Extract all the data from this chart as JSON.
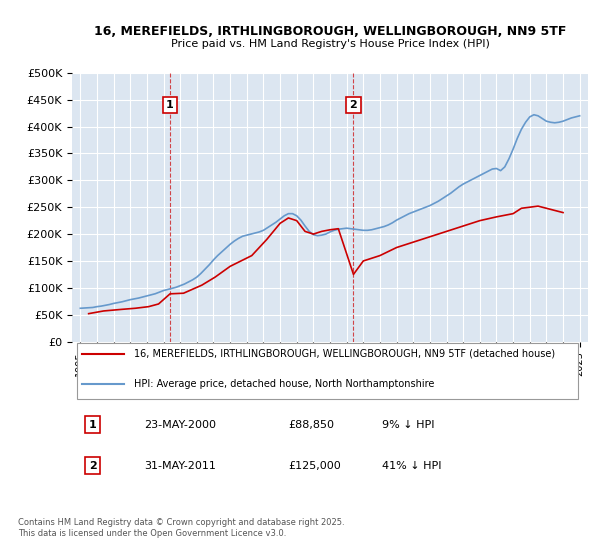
{
  "title_line1": "16, MEREFIELDS, IRTHLINGBOROUGH, WELLINGBOROUGH, NN9 5TF",
  "title_line2": "Price paid vs. HM Land Registry's House Price Index (HPI)",
  "bg_color": "#dce6f1",
  "plot_bg_color": "#dce6f1",
  "red_line_color": "#cc0000",
  "blue_line_color": "#6699cc",
  "annotation1": {
    "label": "1",
    "date": "23-MAY-2000",
    "price": "£88,850",
    "pct": "9% ↓ HPI",
    "x_year": 2000.39
  },
  "annotation2": {
    "label": "2",
    "date": "31-MAY-2011",
    "price": "£125,000",
    "pct": "41% ↓ HPI",
    "x_year": 2011.41
  },
  "legend_entry1": "16, MEREFIELDS, IRTHLINGBOROUGH, WELLINGBOROUGH, NN9 5TF (detached house)",
  "legend_entry2": "HPI: Average price, detached house, North Northamptonshire",
  "footer_line1": "Contains HM Land Registry data © Crown copyright and database right 2025.",
  "footer_line2": "This data is licensed under the Open Government Licence v3.0.",
  "ylim": [
    0,
    500000
  ],
  "yticks": [
    0,
    50000,
    100000,
    150000,
    200000,
    250000,
    300000,
    350000,
    400000,
    450000,
    500000
  ],
  "xlim_start": 1994.5,
  "xlim_end": 2025.5,
  "hpi_years": [
    1995.0,
    1995.25,
    1995.5,
    1995.75,
    1996.0,
    1996.25,
    1996.5,
    1996.75,
    1997.0,
    1997.25,
    1997.5,
    1997.75,
    1998.0,
    1998.25,
    1998.5,
    1998.75,
    1999.0,
    1999.25,
    1999.5,
    1999.75,
    2000.0,
    2000.25,
    2000.5,
    2000.75,
    2001.0,
    2001.25,
    2001.5,
    2001.75,
    2002.0,
    2002.25,
    2002.5,
    2002.75,
    2003.0,
    2003.25,
    2003.5,
    2003.75,
    2004.0,
    2004.25,
    2004.5,
    2004.75,
    2005.0,
    2005.25,
    2005.5,
    2005.75,
    2006.0,
    2006.25,
    2006.5,
    2006.75,
    2007.0,
    2007.25,
    2007.5,
    2007.75,
    2008.0,
    2008.25,
    2008.5,
    2008.75,
    2009.0,
    2009.25,
    2009.5,
    2009.75,
    2010.0,
    2010.25,
    2010.5,
    2010.75,
    2011.0,
    2011.25,
    2011.5,
    2011.75,
    2012.0,
    2012.25,
    2012.5,
    2012.75,
    2013.0,
    2013.25,
    2013.5,
    2013.75,
    2014.0,
    2014.25,
    2014.5,
    2014.75,
    2015.0,
    2015.25,
    2015.5,
    2015.75,
    2016.0,
    2016.25,
    2016.5,
    2016.75,
    2017.0,
    2017.25,
    2017.5,
    2017.75,
    2018.0,
    2018.25,
    2018.5,
    2018.75,
    2019.0,
    2019.25,
    2019.5,
    2019.75,
    2020.0,
    2020.25,
    2020.5,
    2020.75,
    2021.0,
    2021.25,
    2021.5,
    2021.75,
    2022.0,
    2022.25,
    2022.5,
    2022.75,
    2023.0,
    2023.25,
    2023.5,
    2023.75,
    2024.0,
    2024.25,
    2024.5,
    2024.75,
    2025.0
  ],
  "hpi_values": [
    62000,
    62500,
    63000,
    63500,
    65000,
    66000,
    67500,
    69000,
    71000,
    72500,
    74000,
    76000,
    78000,
    79500,
    81000,
    83000,
    85000,
    87000,
    89000,
    92000,
    95000,
    97000,
    99000,
    101000,
    104000,
    107000,
    111000,
    115000,
    120000,
    127000,
    135000,
    143000,
    152000,
    160000,
    167000,
    174000,
    181000,
    187000,
    192000,
    196000,
    198000,
    200000,
    202000,
    204000,
    207000,
    212000,
    217000,
    222000,
    228000,
    234000,
    238000,
    238000,
    234000,
    226000,
    215000,
    205000,
    199000,
    197000,
    198000,
    200000,
    204000,
    207000,
    209000,
    210000,
    211000,
    210000,
    209000,
    208000,
    207000,
    207000,
    208000,
    210000,
    212000,
    214000,
    217000,
    221000,
    226000,
    230000,
    234000,
    238000,
    241000,
    244000,
    247000,
    250000,
    253000,
    257000,
    261000,
    266000,
    271000,
    276000,
    282000,
    288000,
    293000,
    297000,
    301000,
    305000,
    309000,
    313000,
    317000,
    321000,
    322000,
    318000,
    325000,
    340000,
    358000,
    378000,
    395000,
    408000,
    418000,
    422000,
    420000,
    415000,
    410000,
    408000,
    407000,
    408000,
    410000,
    413000,
    416000,
    418000,
    420000
  ],
  "price_paid_points": [
    {
      "year": 1995.5,
      "price": 52000
    },
    {
      "year": 1996.4,
      "price": 57000
    },
    {
      "year": 1997.5,
      "price": 60000
    },
    {
      "year": 1998.3,
      "price": 62000
    },
    {
      "year": 1999.1,
      "price": 65000
    },
    {
      "year": 1999.7,
      "price": 70000
    },
    {
      "year": 2000.39,
      "price": 88850
    },
    {
      "year": 2001.2,
      "price": 90000
    },
    {
      "year": 2002.3,
      "price": 105000
    },
    {
      "year": 2003.1,
      "price": 120000
    },
    {
      "year": 2004.0,
      "price": 140000
    },
    {
      "year": 2005.3,
      "price": 160000
    },
    {
      "year": 2006.2,
      "price": 190000
    },
    {
      "year": 2007.0,
      "price": 220000
    },
    {
      "year": 2007.5,
      "price": 230000
    },
    {
      "year": 2008.0,
      "price": 225000
    },
    {
      "year": 2008.5,
      "price": 205000
    },
    {
      "year": 2009.0,
      "price": 200000
    },
    {
      "year": 2009.5,
      "price": 205000
    },
    {
      "year": 2010.0,
      "price": 208000
    },
    {
      "year": 2010.5,
      "price": 210000
    },
    {
      "year": 2011.41,
      "price": 125000
    },
    {
      "year": 2012.0,
      "price": 150000
    },
    {
      "year": 2013.0,
      "price": 160000
    },
    {
      "year": 2014.0,
      "price": 175000
    },
    {
      "year": 2015.0,
      "price": 185000
    },
    {
      "year": 2016.0,
      "price": 195000
    },
    {
      "year": 2017.0,
      "price": 205000
    },
    {
      "year": 2018.0,
      "price": 215000
    },
    {
      "year": 2019.0,
      "price": 225000
    },
    {
      "year": 2020.0,
      "price": 232000
    },
    {
      "year": 2021.0,
      "price": 238000
    },
    {
      "year": 2021.5,
      "price": 248000
    },
    {
      "year": 2022.0,
      "price": 250000
    },
    {
      "year": 2022.5,
      "price": 252000
    },
    {
      "year": 2023.0,
      "price": 248000
    },
    {
      "year": 2023.5,
      "price": 244000
    },
    {
      "year": 2024.0,
      "price": 240000
    }
  ]
}
